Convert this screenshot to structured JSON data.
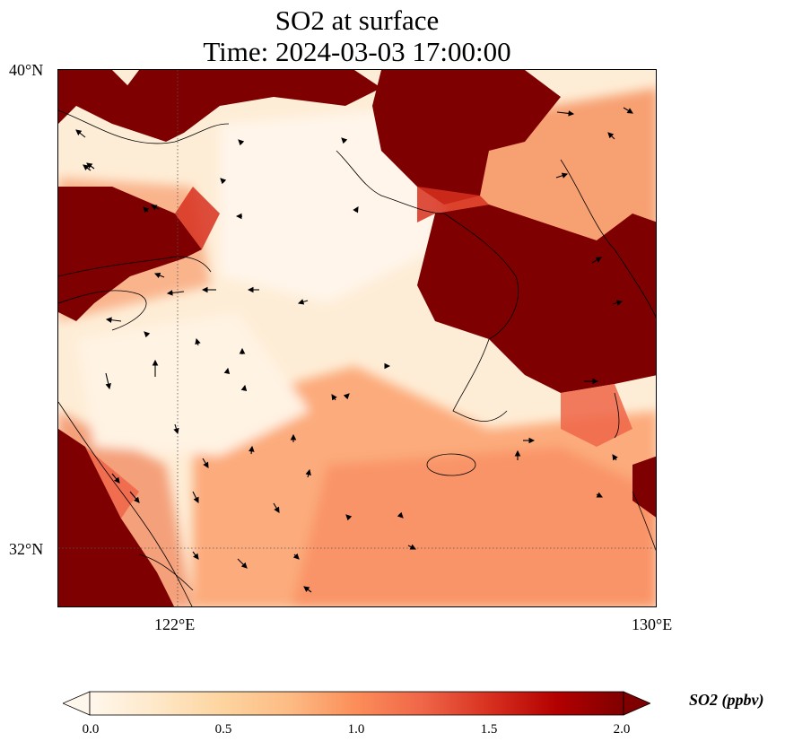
{
  "title": {
    "line1": "SO2 at surface",
    "line2": "Time: 2024-03-03 17:00:00"
  },
  "axes": {
    "lat_labels": [
      "40°N",
      "32°N"
    ],
    "lon_labels": [
      "122°E",
      "130°E"
    ],
    "lat_range": [
      31,
      40
    ],
    "lon_range": [
      120,
      130
    ]
  },
  "colorbar": {
    "label": "SO2 (ppbv)",
    "ticks": [
      "0.0",
      "0.5",
      "1.0",
      "1.5",
      "2.0"
    ],
    "range": [
      0.0,
      2.0
    ],
    "extend": "both",
    "colormap": "OrRd",
    "colors": [
      "#fff7ec",
      "#fee8c8",
      "#fdd49e",
      "#fdbb84",
      "#fc8d59",
      "#ef6548",
      "#d7301f",
      "#b30000",
      "#7f0000"
    ]
  },
  "map": {
    "variable": "SO2",
    "level": "surface",
    "gridlines": {
      "lat": [
        32
      ],
      "lon": [
        122
      ]
    },
    "coastlines": true,
    "wind_vectors": true
  }
}
